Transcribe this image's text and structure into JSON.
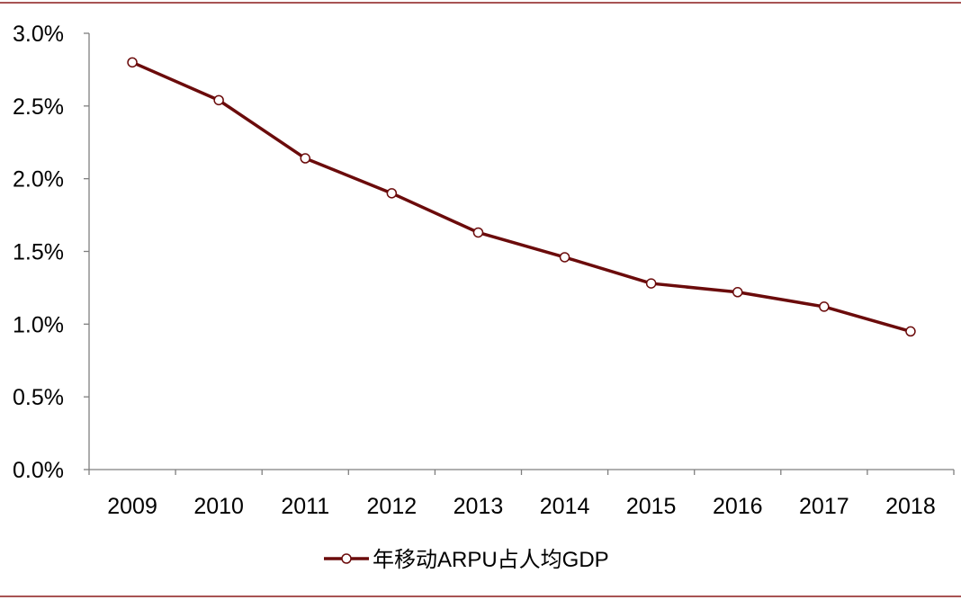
{
  "chart_data": {
    "type": "line",
    "title": "",
    "xlabel": "",
    "ylabel": "",
    "x": [
      "2009",
      "2010",
      "2011",
      "2012",
      "2013",
      "2014",
      "2015",
      "2016",
      "2017",
      "2018"
    ],
    "series": [
      {
        "name": "年移动ARPU占人均GDP",
        "values": [
          2.8,
          2.54,
          2.14,
          1.9,
          1.63,
          1.46,
          1.28,
          1.22,
          1.12,
          0.95
        ]
      }
    ],
    "yticks": [
      "0.0%",
      "0.5%",
      "1.0%",
      "1.5%",
      "2.0%",
      "2.5%",
      "3.0%"
    ],
    "ylim": [
      0,
      3.0
    ],
    "ytick_step": 0.5,
    "y_unit": "%",
    "grid": false,
    "legend_position": "bottom",
    "colors": {
      "line": "#6b0b0b",
      "marker_fill": "#ffffff",
      "axis": "#7f7f7f",
      "frame": "#8b1a1a"
    }
  }
}
